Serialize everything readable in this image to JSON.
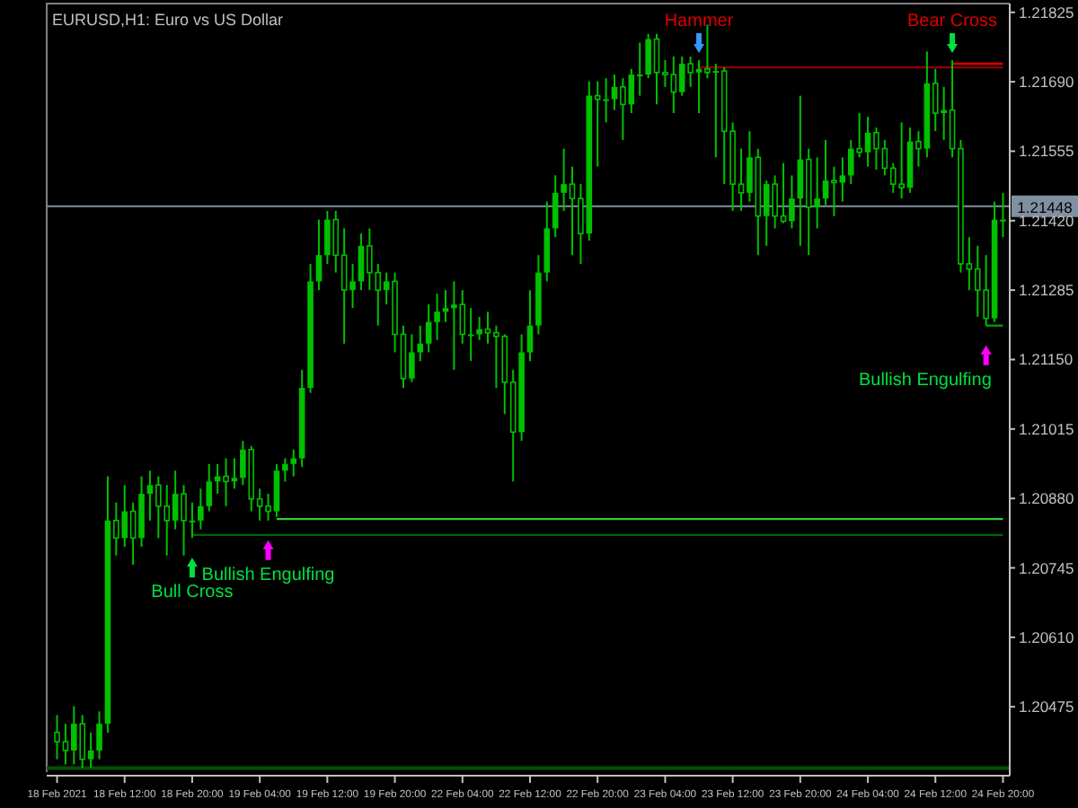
{
  "chart_data": {
    "type": "candlestick",
    "title": "EURUSD,H1:  Euro vs US Dollar",
    "color": "#00c000",
    "categories": [
      "18 Feb 2021",
      null,
      null,
      null,
      null,
      null,
      null,
      null,
      "18 Feb 12:00",
      null,
      null,
      null,
      null,
      null,
      null,
      null,
      "18 Feb 20:00",
      null,
      null,
      null,
      null,
      null,
      null,
      null,
      "19 Feb 04:00",
      null,
      null,
      null,
      null,
      null,
      null,
      null,
      "19 Feb 12:00",
      null,
      null,
      null,
      null,
      null,
      null,
      null,
      "19 Feb 20:00",
      null,
      null,
      null,
      null,
      null,
      null,
      null,
      "22 Feb 04:00",
      null,
      null,
      null,
      null,
      null,
      null,
      null,
      "22 Feb 12:00",
      null,
      null,
      null,
      null,
      null,
      null,
      null,
      "22 Feb 20:00",
      null,
      null,
      null,
      null,
      null,
      null,
      null,
      "23 Feb 04:00",
      null,
      null,
      null,
      null,
      null,
      null,
      null,
      "23 Feb 12:00",
      null,
      null,
      null,
      null,
      null,
      null,
      null,
      "23 Feb 20:00",
      null,
      null,
      null,
      null,
      null,
      null,
      null,
      "24 Feb 04:00",
      null,
      null,
      null,
      null,
      null,
      null,
      null,
      "24 Feb 12:00",
      null,
      null,
      null,
      null,
      null,
      null,
      null,
      "24 Feb 20:00"
    ],
    "ohlc": [
      [
        1.20425,
        1.20459,
        1.20373,
        1.20407
      ],
      [
        1.20407,
        1.20442,
        1.20363,
        1.2039
      ],
      [
        1.2039,
        1.20476,
        1.20363,
        1.20442
      ],
      [
        1.20442,
        1.20459,
        1.20356,
        1.20373
      ],
      [
        1.20373,
        1.20425,
        1.20356,
        1.2039
      ],
      [
        1.2039,
        1.20466,
        1.20373,
        1.20442
      ],
      [
        1.20442,
        1.20923,
        1.20425,
        1.20837
      ],
      [
        1.20837,
        1.20872,
        1.20769,
        1.20803
      ],
      [
        1.20803,
        1.20906,
        1.20786,
        1.20855
      ],
      [
        1.20855,
        1.20872,
        1.20751,
        1.20803
      ],
      [
        1.20803,
        1.20923,
        1.20786,
        1.20889
      ],
      [
        1.20889,
        1.20934,
        1.20837,
        1.20906
      ],
      [
        1.20906,
        1.20923,
        1.20803,
        1.20865
      ],
      [
        1.20865,
        1.20906,
        1.20769,
        1.20837
      ],
      [
        1.20837,
        1.20934,
        1.2082,
        1.20889
      ],
      [
        1.20889,
        1.20906,
        1.20769,
        1.20837
      ],
      [
        1.20837,
        1.20872,
        1.20803,
        1.20837
      ],
      [
        1.20837,
        1.20899,
        1.2082,
        1.20865
      ],
      [
        1.20865,
        1.20947,
        1.20855,
        1.20913
      ],
      [
        1.20913,
        1.20947,
        1.20889,
        1.20923
      ],
      [
        1.20923,
        1.20958,
        1.20865,
        1.20913
      ],
      [
        1.20913,
        1.20958,
        1.20899,
        1.2092
      ],
      [
        1.2092,
        1.20992,
        1.20906,
        1.20975
      ],
      [
        1.20975,
        1.20982,
        1.20855,
        1.20879
      ],
      [
        1.20879,
        1.20899,
        1.20837,
        1.20865
      ],
      [
        1.20865,
        1.20889,
        1.20837,
        1.20855
      ],
      [
        1.20855,
        1.20947,
        1.20844,
        1.20934
      ],
      [
        1.20934,
        1.20958,
        1.20913,
        1.20947
      ],
      [
        1.20947,
        1.20975,
        1.20923,
        1.20958
      ],
      [
        1.20958,
        1.2113,
        1.20941,
        1.21095
      ],
      [
        1.21095,
        1.21336,
        1.21085,
        1.21302
      ],
      [
        1.21302,
        1.21422,
        1.21285,
        1.21353
      ],
      [
        1.21353,
        1.21439,
        1.21336,
        1.21422
      ],
      [
        1.21422,
        1.21439,
        1.21319,
        1.21353
      ],
      [
        1.21353,
        1.21405,
        1.21181,
        1.21285
      ],
      [
        1.21285,
        1.21336,
        1.2125,
        1.21302
      ],
      [
        1.21302,
        1.21395,
        1.21285,
        1.21371
      ],
      [
        1.21371,
        1.21405,
        1.21285,
        1.21319
      ],
      [
        1.21319,
        1.21336,
        1.21216,
        1.21285
      ],
      [
        1.21285,
        1.21319,
        1.21257,
        1.21302
      ],
      [
        1.21302,
        1.21319,
        1.21164,
        1.21199
      ],
      [
        1.21199,
        1.21216,
        1.21095,
        1.21113
      ],
      [
        1.21113,
        1.21199,
        1.21106,
        1.21164
      ],
      [
        1.21164,
        1.21216,
        1.21147,
        1.21181
      ],
      [
        1.21181,
        1.21257,
        1.21164,
        1.21223
      ],
      [
        1.21223,
        1.21278,
        1.21188,
        1.21243
      ],
      [
        1.21243,
        1.21285,
        1.21223,
        1.2125
      ],
      [
        1.2125,
        1.21302,
        1.2113,
        1.21257
      ],
      [
        1.21257,
        1.21285,
        1.21181,
        1.21199
      ],
      [
        1.21199,
        1.2125,
        1.21147,
        1.21199
      ],
      [
        1.21199,
        1.21233,
        1.21188,
        1.21209
      ],
      [
        1.21209,
        1.21243,
        1.21181,
        1.21202
      ],
      [
        1.21202,
        1.21216,
        1.21095,
        1.21195
      ],
      [
        1.21195,
        1.21199,
        1.21044,
        1.21106
      ],
      [
        1.21106,
        1.2113,
        1.20913,
        1.21009
      ],
      [
        1.21009,
        1.21199,
        1.20992,
        1.21164
      ],
      [
        1.21164,
        1.21285,
        1.21147,
        1.21216
      ],
      [
        1.21216,
        1.21353,
        1.21199,
        1.21319
      ],
      [
        1.21319,
        1.21457,
        1.21302,
        1.21405
      ],
      [
        1.21405,
        1.21508,
        1.21388,
        1.21474
      ],
      [
        1.21474,
        1.2156,
        1.21439,
        1.21491
      ],
      [
        1.21491,
        1.21525,
        1.21353,
        1.21463
      ],
      [
        1.21463,
        1.21491,
        1.21336,
        1.21395
      ],
      [
        1.21395,
        1.21691,
        1.21381,
        1.21663
      ],
      [
        1.21663,
        1.21691,
        1.21525,
        1.21656
      ],
      [
        1.21656,
        1.21697,
        1.21611,
        1.21656
      ],
      [
        1.21656,
        1.21704,
        1.21635,
        1.2168
      ],
      [
        1.2168,
        1.21697,
        1.21577,
        1.21646
      ],
      [
        1.21646,
        1.21715,
        1.21629,
        1.21704
      ],
      [
        1.21704,
        1.21766,
        1.21663,
        1.21704
      ],
      [
        1.21704,
        1.21783,
        1.21697,
        1.21773
      ],
      [
        1.21773,
        1.21783,
        1.21646,
        1.21708
      ],
      [
        1.21708,
        1.21732,
        1.2168,
        1.21704
      ],
      [
        1.21704,
        1.21739,
        1.21629,
        1.2167
      ],
      [
        1.2167,
        1.21739,
        1.21663,
        1.21725
      ],
      [
        1.21725,
        1.21739,
        1.2168,
        1.21708
      ],
      [
        1.21708,
        1.21732,
        1.21629,
        1.21715
      ],
      [
        1.21715,
        1.21801,
        1.21697,
        1.21708
      ],
      [
        1.21708,
        1.21725,
        1.21543,
        1.21711
      ],
      [
        1.21711,
        1.21718,
        1.21491,
        1.21594
      ],
      [
        1.21594,
        1.21611,
        1.21439,
        1.21491
      ],
      [
        1.21491,
        1.2156,
        1.21439,
        1.21474
      ],
      [
        1.21474,
        1.21594,
        1.21457,
        1.21543
      ],
      [
        1.21543,
        1.2156,
        1.21353,
        1.21429
      ],
      [
        1.21429,
        1.21498,
        1.21371,
        1.21491
      ],
      [
        1.21491,
        1.21508,
        1.21405,
        1.21429
      ],
      [
        1.21429,
        1.21532,
        1.21415,
        1.21419
      ],
      [
        1.21419,
        1.21508,
        1.21405,
        1.21463
      ],
      [
        1.21463,
        1.21663,
        1.21371,
        1.21539
      ],
      [
        1.21539,
        1.2156,
        1.21353,
        1.21446
      ],
      [
        1.21446,
        1.21543,
        1.21405,
        1.21463
      ],
      [
        1.21463,
        1.21577,
        1.2145,
        1.21498
      ],
      [
        1.21498,
        1.21525,
        1.21429,
        1.21494
      ],
      [
        1.21494,
        1.21543,
        1.21457,
        1.21508
      ],
      [
        1.21508,
        1.21577,
        1.21491,
        1.2156
      ],
      [
        1.2156,
        1.21629,
        1.21543,
        1.21553
      ],
      [
        1.21553,
        1.21622,
        1.21525,
        1.21591
      ],
      [
        1.21591,
        1.21601,
        1.21519,
        1.2156
      ],
      [
        1.2156,
        1.21577,
        1.21508,
        1.21522
      ],
      [
        1.21522,
        1.21532,
        1.21474,
        1.21491
      ],
      [
        1.21491,
        1.21611,
        1.21463,
        1.21484
      ],
      [
        1.21484,
        1.21601,
        1.21474,
        1.21574
      ],
      [
        1.21574,
        1.21594,
        1.21525,
        1.2156
      ],
      [
        1.2156,
        1.21749,
        1.21543,
        1.21687
      ],
      [
        1.21687,
        1.21715,
        1.21594,
        1.21629
      ],
      [
        1.21629,
        1.2168,
        1.21577,
        1.21635
      ],
      [
        1.21635,
        1.21732,
        1.21543,
        1.2156
      ],
      [
        1.2156,
        1.21577,
        1.21319,
        1.21336
      ],
      [
        1.21336,
        1.21388,
        1.21285,
        1.21326
      ],
      [
        1.21326,
        1.21371,
        1.21233,
        1.21285
      ],
      [
        1.21285,
        1.21353,
        1.21216,
        1.2123
      ],
      [
        1.2123,
        1.21457,
        1.21223,
        1.21422
      ],
      [
        1.21422,
        1.21474,
        1.21388,
        1.21422
      ]
    ],
    "series": [
      {
        "type": "line",
        "color": "#8b0000",
        "values": [
          null,
          null,
          null,
          null,
          null,
          null,
          null,
          null,
          null,
          null,
          null,
          null,
          null,
          null,
          null,
          null,
          null,
          null,
          null,
          null,
          null,
          null,
          null,
          null,
          null,
          null,
          null,
          null,
          null,
          null,
          null,
          null,
          null,
          null,
          null,
          null,
          null,
          null,
          null,
          null,
          null,
          null,
          null,
          null,
          null,
          null,
          null,
          null,
          null,
          null,
          null,
          null,
          null,
          null,
          null,
          null,
          null,
          null,
          null,
          null,
          null,
          null,
          null,
          null,
          null,
          null,
          null,
          null,
          null,
          null,
          null,
          null,
          null,
          null,
          null,
          null,
          1.21718,
          1.21718,
          1.21718,
          1.21718,
          1.21718,
          1.21718,
          1.21718,
          1.21718,
          1.21718,
          1.21718,
          1.21718,
          1.21718,
          1.21718,
          1.21718,
          1.21718,
          1.21718,
          1.21718,
          1.21718,
          1.21718,
          1.21718,
          1.21718,
          1.21718,
          1.21718,
          1.21718,
          1.21718,
          1.21718,
          1.21718,
          1.21718,
          1.21718,
          1.21718,
          1.21718,
          1.21718,
          1.21718,
          1.21718,
          1.21718,
          1.21718,
          1.21718
        ]
      },
      {
        "type": "line",
        "color": "#e00000",
        "values": [
          null,
          null,
          null,
          null,
          null,
          null,
          null,
          null,
          null,
          null,
          null,
          null,
          null,
          null,
          null,
          null,
          null,
          null,
          null,
          null,
          null,
          null,
          null,
          null,
          null,
          null,
          null,
          null,
          null,
          null,
          null,
          null,
          null,
          null,
          null,
          null,
          null,
          null,
          null,
          null,
          null,
          null,
          null,
          null,
          null,
          null,
          null,
          null,
          null,
          null,
          null,
          null,
          null,
          null,
          null,
          null,
          null,
          null,
          null,
          null,
          null,
          null,
          null,
          null,
          null,
          null,
          null,
          null,
          null,
          null,
          null,
          null,
          null,
          null,
          null,
          null,
          null,
          null,
          null,
          null,
          null,
          null,
          null,
          null,
          null,
          null,
          null,
          null,
          null,
          null,
          null,
          null,
          null,
          null,
          null,
          null,
          null,
          null,
          null,
          null,
          null,
          null,
          null,
          null,
          null,
          null,
          1.21725,
          1.21725,
          1.21725,
          1.21725,
          1.21725,
          1.21725,
          1.21725
        ]
      },
      {
        "type": "line",
        "color": "#33cc33",
        "values": [
          null,
          null,
          null,
          null,
          null,
          null,
          null,
          null,
          null,
          null,
          null,
          null,
          null,
          null,
          null,
          null,
          null,
          null,
          null,
          null,
          null,
          null,
          null,
          null,
          null,
          null,
          1.2084,
          1.2084,
          1.2084,
          1.2084,
          1.2084,
          1.2084,
          1.2084,
          1.2084,
          1.2084,
          1.2084,
          1.2084,
          1.2084,
          1.2084,
          1.2084,
          1.2084,
          1.2084,
          1.2084,
          1.2084,
          1.2084,
          1.2084,
          1.2084,
          1.2084,
          1.2084,
          1.2084,
          1.2084,
          1.2084,
          1.2084,
          1.2084,
          1.2084,
          1.2084,
          1.2084,
          1.2084,
          1.2084,
          1.2084,
          1.2084,
          1.2084,
          1.2084,
          1.2084,
          1.2084,
          1.2084,
          1.2084,
          1.2084,
          1.2084,
          1.2084,
          1.2084,
          1.2084,
          1.2084,
          1.2084,
          1.2084,
          1.2084,
          1.2084,
          1.2084,
          1.2084,
          1.2084,
          1.2084,
          1.2084,
          1.2084,
          1.2084,
          1.2084,
          1.2084,
          1.2084,
          1.2084,
          1.2084,
          1.2084,
          1.2084,
          1.2084,
          1.2084,
          1.2084,
          1.2084,
          1.2084,
          1.2084,
          1.2084,
          1.2084,
          1.2084,
          1.2084,
          1.2084,
          1.2084,
          1.2084,
          1.2084,
          1.2084,
          1.2084,
          1.2084,
          1.2084,
          1.2084,
          1.2084,
          1.2084,
          1.2084
        ]
      },
      {
        "type": "line",
        "color": "#006400",
        "values": [
          null,
          null,
          null,
          null,
          null,
          null,
          null,
          null,
          null,
          null,
          null,
          null,
          null,
          null,
          null,
          null,
          1.20809,
          1.20809,
          1.20809,
          1.20809,
          1.20809,
          1.20809,
          1.20809,
          1.20809,
          1.20809,
          1.20809,
          1.20809,
          1.20809,
          1.20809,
          1.20809,
          1.20809,
          1.20809,
          1.20809,
          1.20809,
          1.20809,
          1.20809,
          1.20809,
          1.20809,
          1.20809,
          1.20809,
          1.20809,
          1.20809,
          1.20809,
          1.20809,
          1.20809,
          1.20809,
          1.20809,
          1.20809,
          1.20809,
          1.20809,
          1.20809,
          1.20809,
          1.20809,
          1.20809,
          1.20809,
          1.20809,
          1.20809,
          1.20809,
          1.20809,
          1.20809,
          1.20809,
          1.20809,
          1.20809,
          1.20809,
          1.20809,
          1.20809,
          1.20809,
          1.20809,
          1.20809,
          1.20809,
          1.20809,
          1.20809,
          1.20809,
          1.20809,
          1.20809,
          1.20809,
          1.20809,
          1.20809,
          1.20809,
          1.20809,
          1.20809,
          1.20809,
          1.20809,
          1.20809,
          1.20809,
          1.20809,
          1.20809,
          1.20809,
          1.20809,
          1.20809,
          1.20809,
          1.20809,
          1.20809,
          1.20809,
          1.20809,
          1.20809,
          1.20809,
          1.20809,
          1.20809,
          1.20809,
          1.20809,
          1.20809,
          1.20809,
          1.20809,
          1.20809,
          1.20809,
          1.20809,
          1.20809,
          1.20809,
          1.20809,
          1.20809,
          1.20809,
          1.20809
        ]
      },
      {
        "type": "line",
        "color": "#00a000",
        "values": [
          null,
          null,
          null,
          null,
          null,
          null,
          null,
          null,
          null,
          null,
          null,
          null,
          null,
          null,
          null,
          null,
          null,
          null,
          null,
          null,
          null,
          null,
          null,
          null,
          null,
          null,
          null,
          null,
          null,
          null,
          null,
          null,
          null,
          null,
          null,
          null,
          null,
          null,
          null,
          null,
          null,
          null,
          null,
          null,
          null,
          null,
          null,
          null,
          null,
          null,
          null,
          null,
          null,
          null,
          null,
          null,
          null,
          null,
          null,
          null,
          null,
          null,
          null,
          null,
          null,
          null,
          null,
          null,
          null,
          null,
          null,
          null,
          null,
          null,
          null,
          null,
          null,
          null,
          null,
          null,
          null,
          null,
          null,
          null,
          null,
          null,
          null,
          null,
          null,
          null,
          null,
          null,
          null,
          null,
          null,
          null,
          null,
          null,
          null,
          null,
          null,
          null,
          null,
          null,
          null,
          null,
          null,
          null,
          null,
          null,
          1.21216,
          1.21216,
          1.21216
        ]
      }
    ],
    "ref_lines": [
      {
        "axis": "y",
        "value": 1.21448,
        "label": "1.21448",
        "color": "#8090a0"
      },
      {
        "axis": "y",
        "value": 1.20356,
        "color": "#005000"
      }
    ],
    "annotations": [
      "Hammer",
      "Bear Cross",
      "Bull Cross",
      "Bullish Engulfing",
      "Bullish Engulfing"
    ],
    "ylim": [
      1.20348,
      1.21835
    ],
    "yticks": [
      1.20475,
      {
        "value": 1.2061,
        "label": "1.20610"
      },
      1.20745,
      {
        "value": 1.2088,
        "label": "1.20880"
      },
      1.21015,
      {
        "value": 1.2115,
        "label": "1.21150"
      },
      1.21285,
      {
        "value": 1.2142,
        "label": "1.21420"
      },
      1.21555,
      {
        "value": 1.2169,
        "label": "1.21690"
      },
      1.21825
    ]
  }
}
